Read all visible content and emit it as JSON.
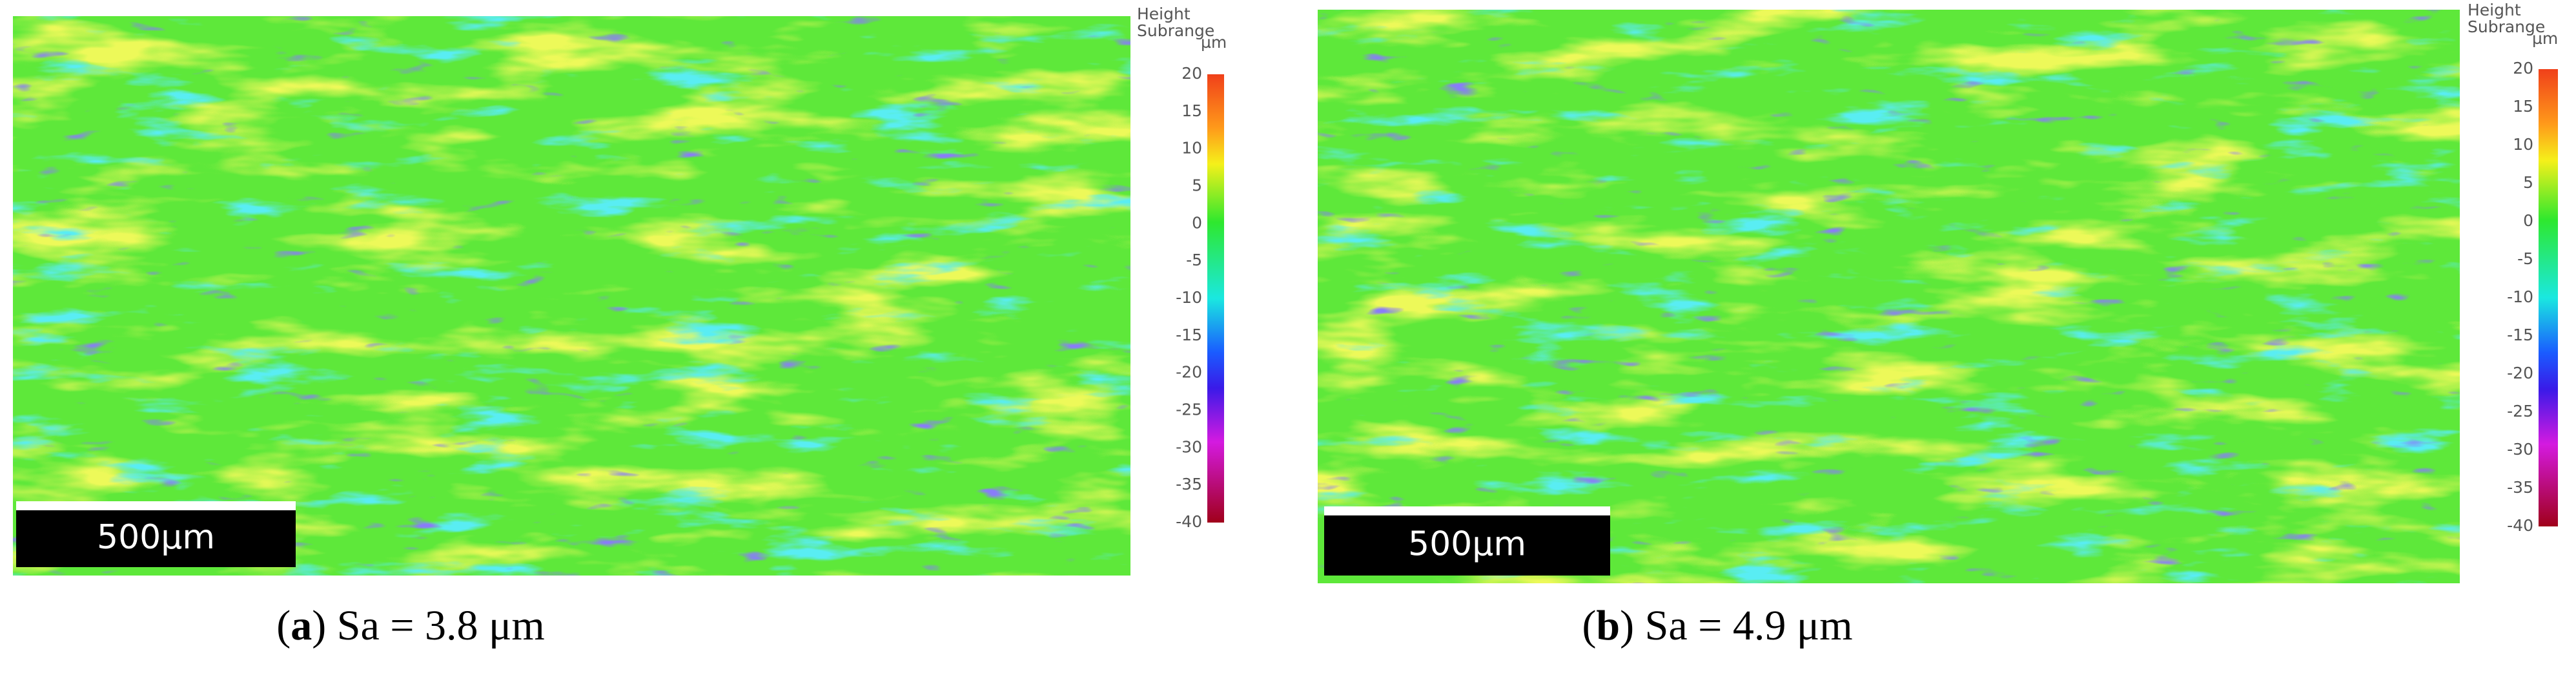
{
  "panels": [
    {
      "legend_title": "Height\nSubrange",
      "legend_unit": "µm",
      "colorbar_ticks": [
        20,
        15,
        10,
        5,
        0,
        -5,
        -10,
        -15,
        -20,
        -25,
        -30,
        -35,
        -40
      ],
      "scale_bar": "500µm",
      "caption": {
        "open": "(",
        "label": "a",
        "text": ") Sa = 3.8 μm"
      }
    },
    {
      "legend_title": "Height\nSubrange",
      "legend_unit": "µm",
      "colorbar_ticks": [
        20,
        15,
        10,
        5,
        0,
        -5,
        -10,
        -15,
        -20,
        -25,
        -30,
        -35,
        -40
      ],
      "scale_bar": "500µm",
      "caption": {
        "open": "(",
        "label": "b",
        "text": ") Sa = 4.9 μm"
      }
    }
  ]
}
